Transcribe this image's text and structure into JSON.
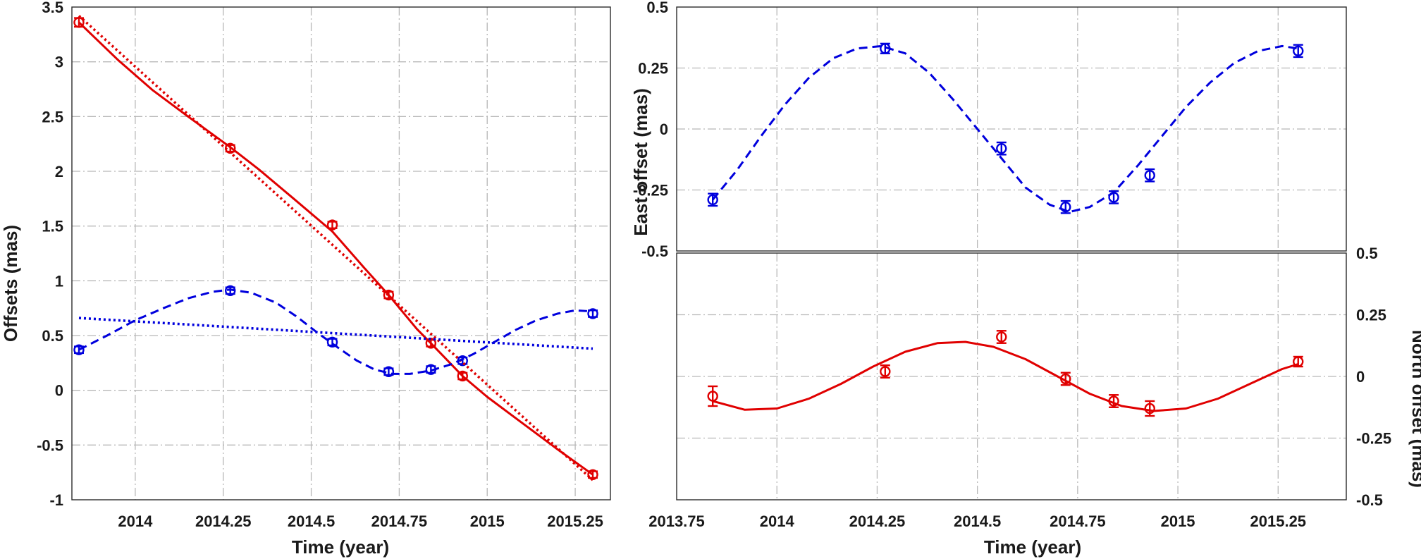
{
  "colors": {
    "red": "#e00000",
    "blue": "#0000dd",
    "axis": "#2a2a2a",
    "grid": "#b8b8b8"
  },
  "chart_data": [
    {
      "type": "line",
      "xlabel": "Time (year)",
      "ylabel": "Offsets (mas)",
      "xlim": [
        2013.82,
        2015.35
      ],
      "ylim": [
        -1,
        3.5
      ],
      "xticks": [
        2014,
        2014.25,
        2014.5,
        2014.75,
        2015,
        2015.25
      ],
      "xtick_labels": [
        "2014",
        "2014.25",
        "2014.5",
        "2014.75",
        "2015",
        "2015.25"
      ],
      "yticks": [
        -1,
        -0.5,
        0,
        0.5,
        1,
        1.5,
        2,
        2.5,
        3,
        3.5
      ],
      "ytick_labels": [
        "-1",
        "-0.5",
        "0",
        "0.5",
        "1",
        "1.5",
        "2",
        "2.5",
        "3",
        "3.5"
      ],
      "grid": true,
      "series": [
        {
          "kind": "points",
          "color": "red",
          "x": [
            2013.84,
            2014.27,
            2014.56,
            2014.72,
            2014.84,
            2014.93,
            2015.3
          ],
          "y": [
            3.36,
            2.21,
            1.51,
            0.87,
            0.43,
            0.13,
            -0.77
          ],
          "err": [
            0.04,
            0.03,
            0.03,
            0.03,
            0.03,
            0.03,
            0.03
          ]
        },
        {
          "kind": "points",
          "color": "blue",
          "x": [
            2013.84,
            2014.27,
            2014.56,
            2014.72,
            2014.84,
            2014.93,
            2015.3
          ],
          "y": [
            0.37,
            0.91,
            0.44,
            0.17,
            0.19,
            0.27,
            0.7
          ],
          "err": [
            0.03,
            0.03,
            0.03,
            0.03,
            0.03,
            0.03,
            0.03
          ]
        },
        {
          "kind": "curve",
          "style": "solid",
          "color": "red",
          "x": [
            2013.84,
            2013.95,
            2014.05,
            2014.15,
            2014.27,
            2014.35,
            2014.45,
            2014.56,
            2014.65,
            2014.72,
            2014.8,
            2014.84,
            2014.93,
            2015.0,
            2015.1,
            2015.2,
            2015.3
          ],
          "y": [
            3.36,
            3.02,
            2.74,
            2.5,
            2.22,
            2.02,
            1.75,
            1.45,
            1.12,
            0.87,
            0.56,
            0.43,
            0.13,
            -0.06,
            -0.3,
            -0.54,
            -0.77
          ]
        },
        {
          "kind": "curve",
          "style": "dotted",
          "color": "red",
          "x": [
            2013.84,
            2015.3
          ],
          "y": [
            3.42,
            -0.82
          ]
        },
        {
          "kind": "curve",
          "style": "dashed",
          "color": "blue",
          "x": [
            2013.84,
            2013.92,
            2014.0,
            2014.08,
            2014.15,
            2014.22,
            2014.27,
            2014.33,
            2014.4,
            2014.46,
            2014.52,
            2014.58,
            2014.63,
            2014.68,
            2014.73,
            2014.78,
            2014.84,
            2014.9,
            2014.96,
            2015.02,
            2015.08,
            2015.14,
            2015.2,
            2015.25,
            2015.3
          ],
          "y": [
            0.37,
            0.5,
            0.64,
            0.75,
            0.84,
            0.9,
            0.92,
            0.89,
            0.8,
            0.67,
            0.52,
            0.38,
            0.27,
            0.19,
            0.15,
            0.15,
            0.18,
            0.24,
            0.33,
            0.44,
            0.55,
            0.64,
            0.7,
            0.73,
            0.72
          ]
        },
        {
          "kind": "curve",
          "style": "dotted",
          "color": "blue",
          "x": [
            2013.84,
            2015.3
          ],
          "y": [
            0.66,
            0.38
          ]
        }
      ]
    },
    {
      "type": "line",
      "ylabel": "East offset (mas)",
      "xlim": [
        2013.75,
        2015.42
      ],
      "ylim": [
        -0.5,
        0.5
      ],
      "xticks": [
        2013.75,
        2014,
        2014.25,
        2014.5,
        2014.75,
        2015,
        2015.25
      ],
      "yticks": [
        -0.5,
        -0.25,
        0,
        0.25,
        0.5
      ],
      "ytick_labels": [
        "-0.5",
        "-0.25",
        "0",
        "0.25",
        "0.5"
      ],
      "grid": true,
      "series": [
        {
          "kind": "points",
          "color": "blue",
          "x": [
            2013.84,
            2014.27,
            2014.56,
            2014.72,
            2014.84,
            2014.93,
            2015.3
          ],
          "y": [
            -0.29,
            0.33,
            -0.08,
            -0.32,
            -0.28,
            -0.19,
            0.32
          ],
          "err": [
            0.025,
            0.02,
            0.025,
            0.025,
            0.025,
            0.025,
            0.025
          ]
        },
        {
          "kind": "curve",
          "style": "dashed",
          "color": "blue",
          "x": [
            2013.84,
            2013.9,
            2013.96,
            2014.02,
            2014.08,
            2014.14,
            2014.2,
            2014.26,
            2014.32,
            2014.38,
            2014.44,
            2014.5,
            2014.56,
            2014.62,
            2014.68,
            2014.73,
            2014.78,
            2014.84,
            2014.9,
            2014.96,
            2015.02,
            2015.08,
            2015.14,
            2015.2,
            2015.26,
            2015.3
          ],
          "y": [
            -0.29,
            -0.17,
            -0.03,
            0.1,
            0.21,
            0.29,
            0.33,
            0.34,
            0.31,
            0.23,
            0.12,
            0.0,
            -0.12,
            -0.24,
            -0.31,
            -0.34,
            -0.32,
            -0.26,
            -0.15,
            -0.03,
            0.09,
            0.19,
            0.27,
            0.32,
            0.34,
            0.33
          ]
        }
      ]
    },
    {
      "type": "line",
      "xlabel": "Time (year)",
      "ylabel": "North offset (mas)",
      "xlim": [
        2013.75,
        2015.42
      ],
      "ylim": [
        -0.5,
        0.5
      ],
      "xticks": [
        2013.75,
        2014,
        2014.25,
        2014.5,
        2014.75,
        2015,
        2015.25
      ],
      "xtick_labels": [
        "2013.75",
        "2014",
        "2014.25",
        "2014.5",
        "2014.75",
        "2015",
        "2015.25"
      ],
      "yticks": [
        -0.5,
        -0.25,
        0,
        0.25,
        0.5
      ],
      "ytick_labels": [
        "-0.5",
        "-0.25",
        "0",
        "0.25",
        "0.5"
      ],
      "grid": true,
      "series": [
        {
          "kind": "points",
          "color": "red",
          "x": [
            2013.84,
            2014.27,
            2014.56,
            2014.72,
            2014.84,
            2014.93,
            2015.3
          ],
          "y": [
            -0.08,
            0.02,
            0.16,
            -0.01,
            -0.1,
            -0.13,
            0.06
          ],
          "err": [
            0.04,
            0.025,
            0.025,
            0.025,
            0.025,
            0.03,
            0.02
          ]
        },
        {
          "kind": "curve",
          "style": "solid",
          "color": "red",
          "x": [
            2013.84,
            2013.92,
            2014.0,
            2014.08,
            2014.16,
            2014.24,
            2014.32,
            2014.4,
            2014.47,
            2014.54,
            2014.62,
            2014.7,
            2014.78,
            2014.86,
            2014.94,
            2015.02,
            2015.1,
            2015.18,
            2015.26,
            2015.3
          ],
          "y": [
            -0.1,
            -0.135,
            -0.13,
            -0.09,
            -0.03,
            0.04,
            0.1,
            0.135,
            0.14,
            0.12,
            0.07,
            0.0,
            -0.07,
            -0.12,
            -0.14,
            -0.13,
            -0.09,
            -0.03,
            0.03,
            0.05
          ]
        }
      ]
    }
  ]
}
